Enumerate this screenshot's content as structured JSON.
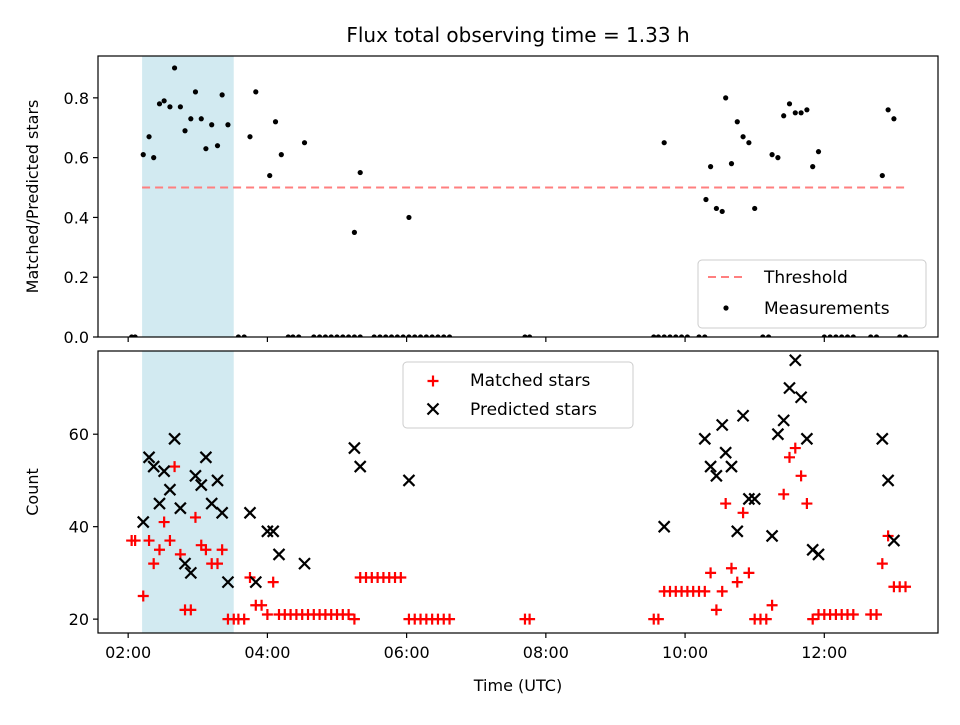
{
  "title": "Flux total observing time = 1.33 h",
  "xlabel": "Time (UTC)",
  "xticks": [
    "02:00",
    "04:00",
    "06:00",
    "08:00",
    "10:00",
    "12:00"
  ],
  "colors": {
    "measurement": "#000000",
    "threshold": "#ff7f7f",
    "matched": "#ff0000",
    "predicted": "#000000",
    "highlight": "#add8e6"
  },
  "chart_data": [
    {
      "type": "scatter",
      "ylabel": "Matched/Predicted stars",
      "xlim": [
        "01:34",
        "13:38"
      ],
      "ylim": [
        0,
        0.94
      ],
      "yticks": [
        "0.0",
        "0.2",
        "0.4",
        "0.6",
        "0.8"
      ],
      "highlight_span": [
        "02:12",
        "03:31"
      ],
      "legend": {
        "placement": "lower-right",
        "entries": [
          "Threshold",
          "Measurements"
        ]
      },
      "threshold": {
        "name": "Threshold",
        "value": 0.5,
        "x_range": [
          "02:12",
          "13:10"
        ]
      },
      "series": [
        {
          "name": "Measurements",
          "points": [
            [
              "02:03",
              0
            ],
            [
              "02:06",
              0
            ],
            [
              "02:13",
              0.61
            ],
            [
              "02:18",
              0.67
            ],
            [
              "02:22",
              0.6
            ],
            [
              "02:27",
              0.78
            ],
            [
              "02:31",
              0.79
            ],
            [
              "02:36",
              0.77
            ],
            [
              "02:40",
              0.9
            ],
            [
              "02:45",
              0.77
            ],
            [
              "02:49",
              0.69
            ],
            [
              "02:54",
              0.73
            ],
            [
              "02:58",
              0.82
            ],
            [
              "03:03",
              0.73
            ],
            [
              "03:07",
              0.63
            ],
            [
              "03:12",
              0.71
            ],
            [
              "03:17",
              0.64
            ],
            [
              "03:21",
              0.81
            ],
            [
              "03:26",
              0.71
            ],
            [
              "03:35",
              0
            ],
            [
              "03:40",
              0
            ],
            [
              "03:45",
              0.67
            ],
            [
              "03:50",
              0.82
            ],
            [
              "04:02",
              0.54
            ],
            [
              "04:07",
              0.72
            ],
            [
              "04:12",
              0.61
            ],
            [
              "04:18",
              0
            ],
            [
              "04:22",
              0
            ],
            [
              "04:27",
              0
            ],
            [
              "04:32",
              0.65
            ],
            [
              "04:40",
              0
            ],
            [
              "04:45",
              0
            ],
            [
              "04:50",
              0
            ],
            [
              "04:55",
              0
            ],
            [
              "05:00",
              0
            ],
            [
              "05:05",
              0
            ],
            [
              "05:10",
              0
            ],
            [
              "05:15",
              0
            ],
            [
              "05:20",
              0
            ],
            [
              "05:15",
              0.35
            ],
            [
              "05:20",
              0.55
            ],
            [
              "05:32",
              0
            ],
            [
              "05:37",
              0
            ],
            [
              "05:42",
              0
            ],
            [
              "05:47",
              0
            ],
            [
              "05:52",
              0
            ],
            [
              "05:57",
              0
            ],
            [
              "06:02",
              0.4
            ],
            [
              "06:02",
              0
            ],
            [
              "06:07",
              0
            ],
            [
              "06:12",
              0
            ],
            [
              "06:17",
              0
            ],
            [
              "06:22",
              0
            ],
            [
              "06:27",
              0
            ],
            [
              "06:32",
              0
            ],
            [
              "06:37",
              0
            ],
            [
              "07:42",
              0
            ],
            [
              "07:46",
              0
            ],
            [
              "09:33",
              0
            ],
            [
              "09:37",
              0
            ],
            [
              "09:42",
              0
            ],
            [
              "09:47",
              0
            ],
            [
              "09:52",
              0
            ],
            [
              "09:57",
              0
            ],
            [
              "10:02",
              0
            ],
            [
              "09:42",
              0.65
            ],
            [
              "10:12",
              0
            ],
            [
              "10:17",
              0
            ],
            [
              "10:18",
              0.46
            ],
            [
              "10:22",
              0.57
            ],
            [
              "10:27",
              0.43
            ],
            [
              "10:32",
              0.42
            ],
            [
              "10:35",
              0.8
            ],
            [
              "10:40",
              0.58
            ],
            [
              "10:45",
              0.72
            ],
            [
              "10:50",
              0.67
            ],
            [
              "10:55",
              0.65
            ],
            [
              "11:00",
              0.43
            ],
            [
              "11:07",
              0
            ],
            [
              "11:12",
              0
            ],
            [
              "11:15",
              0.61
            ],
            [
              "11:20",
              0.6
            ],
            [
              "11:25",
              0.74
            ],
            [
              "11:30",
              0.78
            ],
            [
              "11:35",
              0.75
            ],
            [
              "11:40",
              0.75
            ],
            [
              "11:45",
              0.76
            ],
            [
              "11:50",
              0.57
            ],
            [
              "11:55",
              0.62
            ],
            [
              "12:00",
              0
            ],
            [
              "12:05",
              0
            ],
            [
              "12:10",
              0
            ],
            [
              "12:15",
              0
            ],
            [
              "12:20",
              0
            ],
            [
              "12:25",
              0
            ],
            [
              "12:40",
              0
            ],
            [
              "12:45",
              0
            ],
            [
              "12:50",
              0.54
            ],
            [
              "12:55",
              0.76
            ],
            [
              "13:00",
              0.73
            ],
            [
              "13:05",
              0
            ],
            [
              "13:10",
              0
            ]
          ]
        }
      ]
    },
    {
      "type": "scatter",
      "ylabel": "Count",
      "xlim": [
        "01:34",
        "13:38"
      ],
      "ylim": [
        17,
        78
      ],
      "yticks": [
        "20",
        "40",
        "60"
      ],
      "highlight_span": [
        "02:12",
        "03:31"
      ],
      "legend": {
        "placement": "upper-center",
        "entries": [
          "Matched stars",
          "Predicted stars"
        ]
      },
      "series": [
        {
          "name": "Matched stars",
          "marker": "plus",
          "points": [
            [
              "02:03",
              37
            ],
            [
              "02:06",
              37
            ],
            [
              "02:13",
              25
            ],
            [
              "02:18",
              37
            ],
            [
              "02:22",
              32
            ],
            [
              "02:27",
              35
            ],
            [
              "02:31",
              41
            ],
            [
              "02:36",
              37
            ],
            [
              "02:40",
              53
            ],
            [
              "02:45",
              34
            ],
            [
              "02:49",
              22
            ],
            [
              "02:54",
              22
            ],
            [
              "02:58",
              42
            ],
            [
              "03:03",
              36
            ],
            [
              "03:07",
              35
            ],
            [
              "03:12",
              32
            ],
            [
              "03:17",
              32
            ],
            [
              "03:21",
              35
            ],
            [
              "03:26",
              20
            ],
            [
              "03:31",
              20
            ],
            [
              "03:35",
              20
            ],
            [
              "03:40",
              20
            ],
            [
              "03:45",
              29
            ],
            [
              "03:50",
              23
            ],
            [
              "03:55",
              23
            ],
            [
              "04:00",
              21
            ],
            [
              "04:05",
              28
            ],
            [
              "04:10",
              21
            ],
            [
              "04:15",
              21
            ],
            [
              "04:20",
              21
            ],
            [
              "04:25",
              21
            ],
            [
              "04:30",
              21
            ],
            [
              "04:35",
              21
            ],
            [
              "04:40",
              21
            ],
            [
              "04:45",
              21
            ],
            [
              "04:50",
              21
            ],
            [
              "04:55",
              21
            ],
            [
              "05:00",
              21
            ],
            [
              "05:05",
              21
            ],
            [
              "05:10",
              21
            ],
            [
              "05:15",
              20
            ],
            [
              "05:20",
              29
            ],
            [
              "05:25",
              29
            ],
            [
              "05:30",
              29
            ],
            [
              "05:35",
              29
            ],
            [
              "05:40",
              29
            ],
            [
              "05:45",
              29
            ],
            [
              "05:50",
              29
            ],
            [
              "05:55",
              29
            ],
            [
              "06:02",
              20
            ],
            [
              "06:07",
              20
            ],
            [
              "06:12",
              20
            ],
            [
              "06:17",
              20
            ],
            [
              "06:22",
              20
            ],
            [
              "06:27",
              20
            ],
            [
              "06:32",
              20
            ],
            [
              "06:37",
              20
            ],
            [
              "07:42",
              20
            ],
            [
              "07:46",
              20
            ],
            [
              "09:33",
              20
            ],
            [
              "09:37",
              20
            ],
            [
              "09:42",
              26
            ],
            [
              "09:47",
              26
            ],
            [
              "09:52",
              26
            ],
            [
              "09:57",
              26
            ],
            [
              "10:02",
              26
            ],
            [
              "10:07",
              26
            ],
            [
              "10:12",
              26
            ],
            [
              "10:17",
              26
            ],
            [
              "10:22",
              30
            ],
            [
              "10:27",
              22
            ],
            [
              "10:32",
              26
            ],
            [
              "10:35",
              45
            ],
            [
              "10:40",
              31
            ],
            [
              "10:45",
              28
            ],
            [
              "10:50",
              43
            ],
            [
              "10:55",
              30
            ],
            [
              "11:00",
              20
            ],
            [
              "11:05",
              20
            ],
            [
              "11:10",
              20
            ],
            [
              "11:15",
              23
            ],
            [
              "11:25",
              47
            ],
            [
              "11:30",
              55
            ],
            [
              "11:35",
              57
            ],
            [
              "11:40",
              51
            ],
            [
              "11:45",
              45
            ],
            [
              "11:50",
              20
            ],
            [
              "11:55",
              21
            ],
            [
              "12:00",
              21
            ],
            [
              "12:05",
              21
            ],
            [
              "12:10",
              21
            ],
            [
              "12:15",
              21
            ],
            [
              "12:20",
              21
            ],
            [
              "12:25",
              21
            ],
            [
              "12:40",
              21
            ],
            [
              "12:45",
              21
            ],
            [
              "12:50",
              32
            ],
            [
              "12:55",
              38
            ],
            [
              "13:00",
              27
            ],
            [
              "13:05",
              27
            ],
            [
              "13:10",
              27
            ]
          ]
        },
        {
          "name": "Predicted stars",
          "marker": "x",
          "points": [
            [
              "02:13",
              41
            ],
            [
              "02:18",
              55
            ],
            [
              "02:22",
              53
            ],
            [
              "02:27",
              45
            ],
            [
              "02:31",
              52
            ],
            [
              "02:36",
              48
            ],
            [
              "02:40",
              59
            ],
            [
              "02:45",
              44
            ],
            [
              "02:49",
              32
            ],
            [
              "02:54",
              30
            ],
            [
              "02:58",
              51
            ],
            [
              "03:03",
              49
            ],
            [
              "03:07",
              55
            ],
            [
              "03:12",
              45
            ],
            [
              "03:17",
              50
            ],
            [
              "03:21",
              43
            ],
            [
              "03:26",
              28
            ],
            [
              "03:45",
              43
            ],
            [
              "03:50",
              28
            ],
            [
              "04:00",
              39
            ],
            [
              "04:05",
              39
            ],
            [
              "04:10",
              34
            ],
            [
              "04:32",
              32
            ],
            [
              "05:15",
              57
            ],
            [
              "05:20",
              53
            ],
            [
              "06:02",
              50
            ],
            [
              "09:42",
              40
            ],
            [
              "10:17",
              59
            ],
            [
              "10:22",
              53
            ],
            [
              "10:27",
              51
            ],
            [
              "10:32",
              62
            ],
            [
              "10:35",
              56
            ],
            [
              "10:40",
              53
            ],
            [
              "10:45",
              39
            ],
            [
              "10:50",
              64
            ],
            [
              "10:55",
              46
            ],
            [
              "11:00",
              46
            ],
            [
              "11:15",
              38
            ],
            [
              "11:20",
              60
            ],
            [
              "11:25",
              63
            ],
            [
              "11:30",
              70
            ],
            [
              "11:35",
              76
            ],
            [
              "11:40",
              68
            ],
            [
              "11:45",
              59
            ],
            [
              "11:50",
              35
            ],
            [
              "11:55",
              34
            ],
            [
              "12:50",
              59
            ],
            [
              "12:55",
              50
            ],
            [
              "13:00",
              37
            ]
          ]
        }
      ]
    }
  ]
}
